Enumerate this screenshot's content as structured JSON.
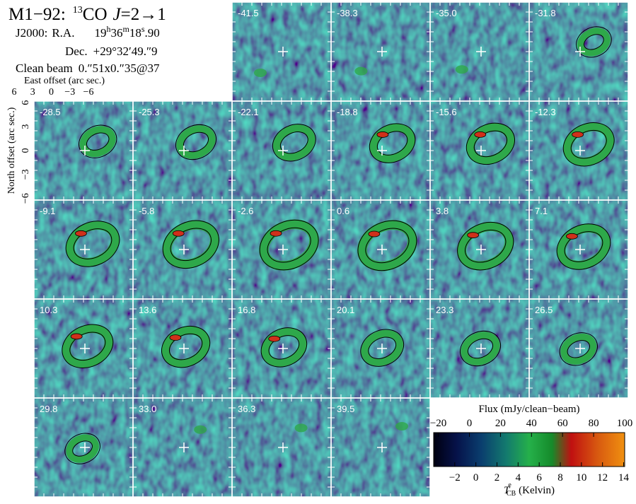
{
  "chart_data": {
    "type": "channel-map",
    "title_source": "M1−92:",
    "title_isotope": "13",
    "title_molecule": "CO",
    "title_symbol": "J",
    "title_transition": "=2→1",
    "coord_frame": "J2000:",
    "ra_label": "R.A.",
    "ra_hours": "19",
    "ra_h": "h",
    "ra_minutes": "36",
    "ra_m": "m",
    "ra_seconds": "18",
    "ra_s": "s",
    "ra_fraction": ".90",
    "dec_label": "Dec.",
    "dec": "+29°32′49.″9",
    "beam_label": "Clean beam",
    "beam": "0.″51x0.″35@37",
    "xlabel": "East offset (arc sec.)",
    "ylabel": "North offset (arc sec.)",
    "xlim": [
      7.2,
      -7.2
    ],
    "xticks": [
      6,
      3,
      0,
      {
        "value": -3,
        "label": "−3"
      },
      {
        "value": -6,
        "label": "−6"
      }
    ],
    "ylim": [
      -6.2,
      6.2
    ],
    "yticks": [
      6,
      3,
      0,
      {
        "value": -3,
        "label": "−3"
      },
      {
        "value": -6,
        "label": "−6"
      }
    ],
    "channels": [
      "-41.5",
      "-38.3",
      "-35.0",
      "-31.8",
      "-28.5",
      "-25.3",
      "-22.1",
      "-18.8",
      "-15.6",
      "-12.3",
      "-9.1",
      "-5.8",
      "-2.6",
      "0.6",
      "3.8",
      "7.1",
      "10.3",
      "13.6",
      "16.8",
      "20.1",
      "23.3",
      "26.5",
      "29.8",
      "33.0",
      "36.3",
      "39.5"
    ],
    "colorbar_title": "Flux (mJy/clean−beam)",
    "colorbar_xlim": [
      -23,
      100
    ],
    "colorbar_xticks": [
      {
        "value": -20,
        "label": "−20"
      },
      0,
      20,
      40,
      60,
      80,
      100
    ],
    "colorbar_x2lim": [
      -4,
      14.1
    ],
    "colorbar_x2ticks": [
      {
        "value": -2,
        "label": "−2"
      },
      0,
      2,
      4,
      6,
      8,
      10,
      12,
      14
    ],
    "colorbar_label_symbol": "T",
    "colorbar_label_sup": "e",
    "colorbar_label_sub": "CB",
    "colorbar_label_unit": "(Kelvin)"
  }
}
